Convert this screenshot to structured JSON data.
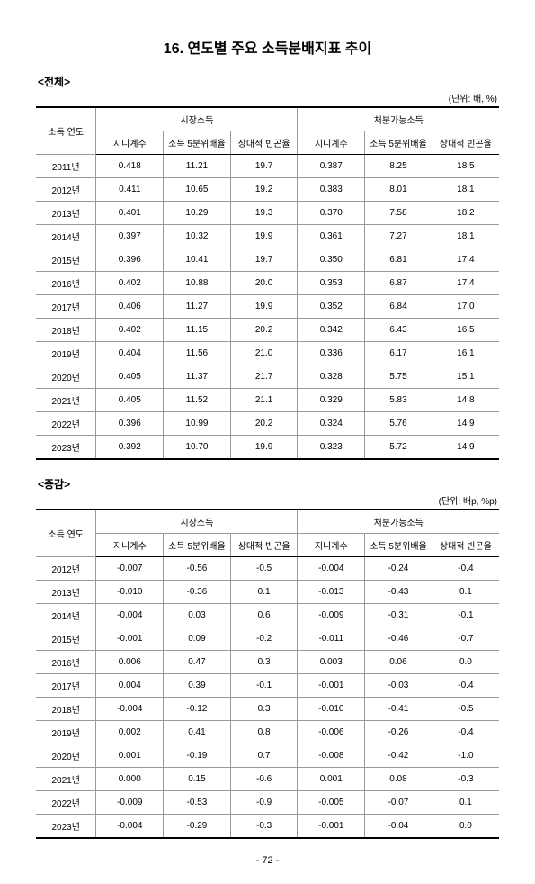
{
  "title": "16. 연도별 주요 소득분배지표 추이",
  "page_number": "- 72 -",
  "sections": [
    {
      "label": "<전체>",
      "unit": "(단위: 배, %)",
      "header": {
        "year": "소득 연도",
        "group_a": "시장소득",
        "group_b": "처분가능소득",
        "sub": [
          "지니계수",
          "소득 5분위배율",
          "상대적 빈곤율",
          "지니계수",
          "소득 5분위배율",
          "상대적 빈곤율"
        ]
      },
      "rows": [
        [
          "2011년",
          "0.418",
          "11.21",
          "19.7",
          "0.387",
          "8.25",
          "18.5"
        ],
        [
          "2012년",
          "0.411",
          "10.65",
          "19.2",
          "0.383",
          "8.01",
          "18.1"
        ],
        [
          "2013년",
          "0.401",
          "10.29",
          "19.3",
          "0.370",
          "7.58",
          "18.2"
        ],
        [
          "2014년",
          "0.397",
          "10.32",
          "19.9",
          "0.361",
          "7.27",
          "18.1"
        ],
        [
          "2015년",
          "0.396",
          "10.41",
          "19.7",
          "0.350",
          "6.81",
          "17.4"
        ],
        [
          "2016년",
          "0.402",
          "10.88",
          "20.0",
          "0.353",
          "6.87",
          "17.4"
        ],
        [
          "2017년",
          "0.406",
          "11.27",
          "19.9",
          "0.352",
          "6.84",
          "17.0"
        ],
        [
          "2018년",
          "0.402",
          "11.15",
          "20.2",
          "0.342",
          "6.43",
          "16.5"
        ],
        [
          "2019년",
          "0.404",
          "11.56",
          "21.0",
          "0.336",
          "6.17",
          "16.1"
        ],
        [
          "2020년",
          "0.405",
          "11.37",
          "21.7",
          "0.328",
          "5.75",
          "15.1"
        ],
        [
          "2021년",
          "0.405",
          "11.52",
          "21.1",
          "0.329",
          "5.83",
          "14.8"
        ],
        [
          "2022년",
          "0.396",
          "10.99",
          "20.2",
          "0.324",
          "5.76",
          "14.9"
        ],
        [
          "2023년",
          "0.392",
          "10.70",
          "19.9",
          "0.323",
          "5.72",
          "14.9"
        ]
      ]
    },
    {
      "label": "<증감>",
      "unit": "(단위: 배p, %p)",
      "header": {
        "year": "소득 연도",
        "group_a": "시장소득",
        "group_b": "처분가능소득",
        "sub": [
          "지니계수",
          "소득 5분위배율",
          "상대적 빈곤율",
          "지니계수",
          "소득 5분위배율",
          "상대적 빈곤율"
        ]
      },
      "rows": [
        [
          "2012년",
          "-0.007",
          "-0.56",
          "-0.5",
          "-0.004",
          "-0.24",
          "-0.4"
        ],
        [
          "2013년",
          "-0.010",
          "-0.36",
          "0.1",
          "-0.013",
          "-0.43",
          "0.1"
        ],
        [
          "2014년",
          "-0.004",
          "0.03",
          "0.6",
          "-0.009",
          "-0.31",
          "-0.1"
        ],
        [
          "2015년",
          "-0.001",
          "0.09",
          "-0.2",
          "-0.011",
          "-0.46",
          "-0.7"
        ],
        [
          "2016년",
          "0.006",
          "0.47",
          "0.3",
          "0.003",
          "0.06",
          "0.0"
        ],
        [
          "2017년",
          "0.004",
          "0.39",
          "-0.1",
          "-0.001",
          "-0.03",
          "-0.4"
        ],
        [
          "2018년",
          "-0.004",
          "-0.12",
          "0.3",
          "-0.010",
          "-0.41",
          "-0.5"
        ],
        [
          "2019년",
          "0.002",
          "0.41",
          "0.8",
          "-0.006",
          "-0.26",
          "-0.4"
        ],
        [
          "2020년",
          "0.001",
          "-0.19",
          "0.7",
          "-0.008",
          "-0.42",
          "-1.0"
        ],
        [
          "2021년",
          "0.000",
          "0.15",
          "-0.6",
          "0.001",
          "0.08",
          "-0.3"
        ],
        [
          "2022년",
          "-0.009",
          "-0.53",
          "-0.9",
          "-0.005",
          "-0.07",
          "0.1"
        ],
        [
          "2023년",
          "-0.004",
          "-0.29",
          "-0.3",
          "-0.001",
          "-0.04",
          "0.0"
        ]
      ]
    }
  ]
}
